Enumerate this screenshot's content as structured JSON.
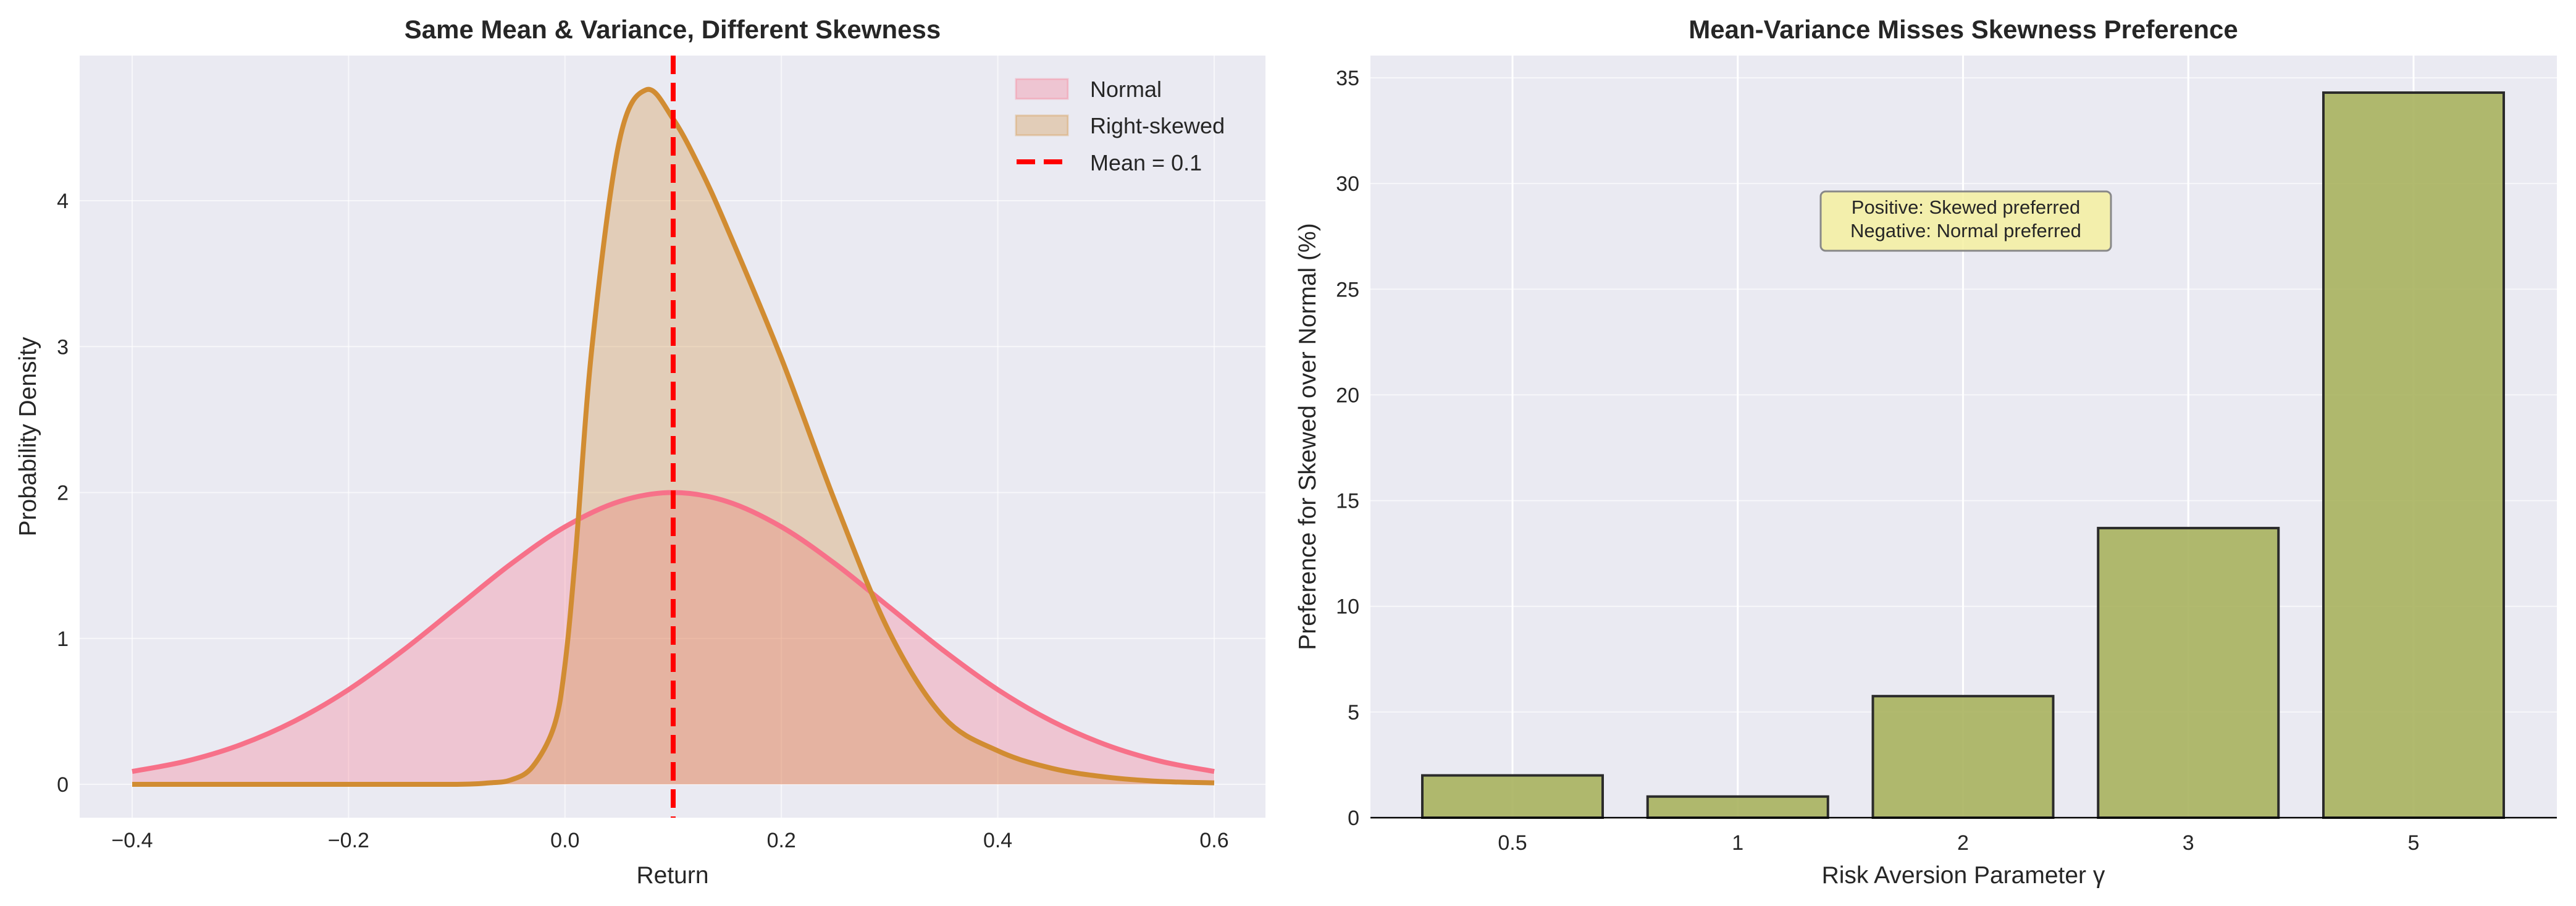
{
  "chart_data": [
    {
      "type": "area",
      "title": "Same Mean & Variance, Different Skewness",
      "xlabel": "Return",
      "ylabel": "Probability Density",
      "xlim": [
        -0.45,
        0.65
      ],
      "ylim": [
        -0.23,
        4.98
      ],
      "xticks": [
        "−0.4",
        "−0.2",
        "0.0",
        "0.2",
        "0.4",
        "0.6"
      ],
      "xtick_values": [
        -0.4,
        -0.2,
        0.0,
        0.2,
        0.4,
        0.6
      ],
      "yticks": [
        "0",
        "1",
        "2",
        "3",
        "4"
      ],
      "ytick_values": [
        0,
        1,
        2,
        3,
        4
      ],
      "grid": true,
      "legend_position": "top-right",
      "series": [
        {
          "name": "Normal",
          "color": "#f77189",
          "x": [
            -0.4,
            -0.35,
            -0.3,
            -0.25,
            -0.2,
            -0.15,
            -0.1,
            -0.05,
            0.0,
            0.05,
            0.1,
            0.15,
            0.2,
            0.25,
            0.3,
            0.35,
            0.4,
            0.45,
            0.5,
            0.55,
            0.6
          ],
          "y": [
            0.088,
            0.159,
            0.271,
            0.433,
            0.649,
            0.916,
            1.213,
            1.51,
            1.765,
            1.938,
            2.0,
            1.938,
            1.765,
            1.51,
            1.213,
            0.916,
            0.649,
            0.433,
            0.271,
            0.159,
            0.088
          ]
        },
        {
          "name": "Right-skewed",
          "color": "#d18c32",
          "x": [
            -0.4,
            -0.2,
            -0.1,
            -0.07,
            -0.05,
            -0.03,
            -0.01,
            0.0,
            0.01,
            0.025,
            0.05,
            0.075,
            0.1,
            0.125,
            0.15,
            0.2,
            0.25,
            0.3,
            0.35,
            0.4,
            0.45,
            0.5,
            0.55,
            0.6
          ],
          "y": [
            0,
            0,
            0,
            0.01,
            0.03,
            0.12,
            0.4,
            0.82,
            1.6,
            3.0,
            4.4,
            4.76,
            4.56,
            4.22,
            3.81,
            2.92,
            1.93,
            1.04,
            0.46,
            0.23,
            0.11,
            0.05,
            0.02,
            0.01
          ]
        }
      ],
      "vline": {
        "name": "Mean = 0.1",
        "x": 0.1,
        "color": "#ff0000",
        "style": "dashed"
      }
    },
    {
      "type": "bar",
      "title": "Mean-Variance Misses Skewness Preference",
      "xlabel": "Risk Aversion Parameter γ",
      "ylabel": "Preference for Skewed over Normal (%)",
      "categories": [
        "0.5",
        "1",
        "2",
        "3",
        "5"
      ],
      "values": [
        2.0,
        1.0,
        5.75,
        13.7,
        34.3
      ],
      "ylim": [
        0,
        36
      ],
      "yticks": [
        "0",
        "5",
        "10",
        "15",
        "20",
        "25",
        "30",
        "35"
      ],
      "ytick_values": [
        0,
        5,
        10,
        15,
        20,
        25,
        30,
        35
      ],
      "grid": true,
      "bar_color": "#a9b25e",
      "annotation": [
        "Positive: Skewed preferred",
        "Negative: Normal preferred"
      ]
    }
  ]
}
